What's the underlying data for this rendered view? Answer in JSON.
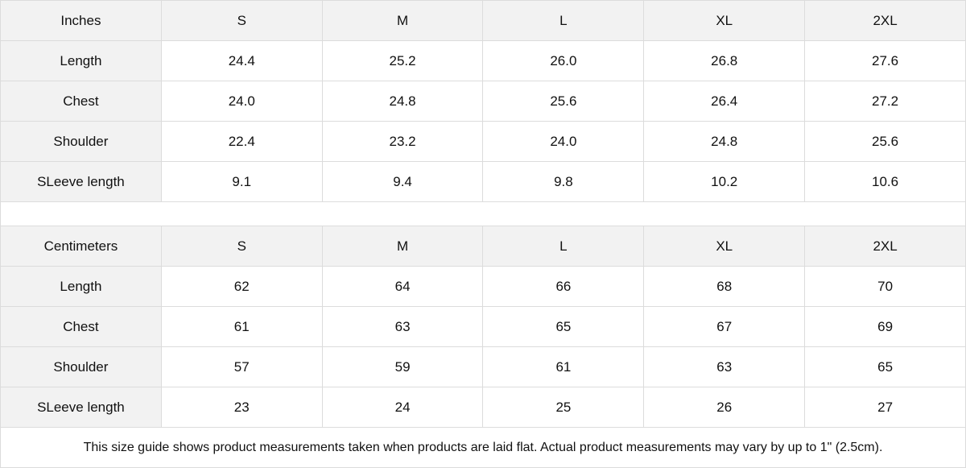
{
  "inches": {
    "header": [
      "Inches",
      "S",
      "M",
      "L",
      "XL",
      "2XL"
    ],
    "rows": [
      [
        "Length",
        "24.4",
        "25.2",
        "26.0",
        "26.8",
        "27.6"
      ],
      [
        "Chest",
        "24.0",
        "24.8",
        "25.6",
        "26.4",
        "27.2"
      ],
      [
        "Shoulder",
        "22.4",
        "23.2",
        "24.0",
        "24.8",
        "25.6"
      ],
      [
        "SLeeve length",
        "9.1",
        "9.4",
        "9.8",
        "10.2",
        "10.6"
      ]
    ]
  },
  "centimeters": {
    "header": [
      "Centimeters",
      "S",
      "M",
      "L",
      "XL",
      "2XL"
    ],
    "rows": [
      [
        "Length",
        "62",
        "64",
        "66",
        "68",
        "70"
      ],
      [
        "Chest",
        "61",
        "63",
        "65",
        "67",
        "69"
      ],
      [
        "Shoulder",
        "57",
        "59",
        "61",
        "63",
        "65"
      ],
      [
        "SLeeve length",
        "23",
        "24",
        "25",
        "26",
        "27"
      ]
    ]
  },
  "note": "This size guide shows product measurements taken when products are laid flat.  Actual product measurements may vary by up to 1\" (2.5cm)."
}
